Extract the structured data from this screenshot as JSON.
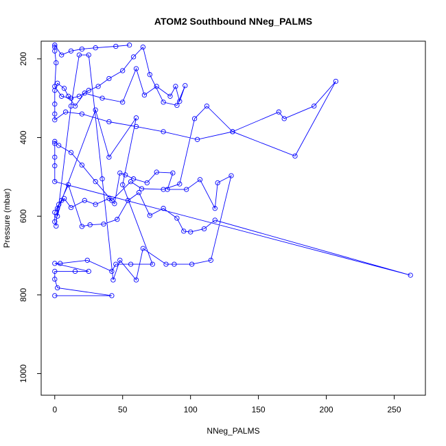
{
  "chart_data": {
    "type": "line",
    "title": "ATOM2 Southbound NNeg_PALMS",
    "xlabel": "NNeg_PALMS",
    "ylabel": "Pressure (mbar)",
    "xlim": [
      -10,
      273
    ],
    "ylim": [
      1055,
      155
    ],
    "y_reversed": true,
    "x_ticks": [
      0,
      50,
      100,
      150,
      200,
      250
    ],
    "y_ticks": [
      200,
      400,
      600,
      800,
      1000
    ],
    "grid": false,
    "series": [
      {
        "color": "#0000ff",
        "marker": "open-circle",
        "points": [
          [
            0,
            802
          ],
          [
            42,
            802
          ],
          [
            2,
            782
          ],
          [
            0,
            760
          ],
          [
            0,
            740
          ],
          [
            15,
            740
          ],
          [
            25,
            740
          ],
          [
            0,
            720
          ],
          [
            4,
            720
          ],
          [
            24,
            712
          ],
          [
            42,
            740
          ],
          [
            45,
            722
          ],
          [
            56,
            722
          ],
          [
            72,
            722
          ],
          [
            50,
            520
          ],
          [
            60,
            350
          ],
          [
            40,
            450
          ],
          [
            30,
            330
          ],
          [
            5,
            560
          ],
          [
            2,
            600
          ],
          [
            12,
            320
          ],
          [
            18,
            190
          ],
          [
            25,
            190
          ],
          [
            35,
            505
          ],
          [
            43,
            762
          ],
          [
            48,
            712
          ],
          [
            60,
            762
          ],
          [
            65,
            682
          ],
          [
            82,
            722
          ],
          [
            88,
            722
          ],
          [
            101,
            722
          ],
          [
            115,
            712
          ],
          [
            130,
            497
          ],
          [
            120,
            515
          ],
          [
            118,
            580
          ],
          [
            107,
            507
          ],
          [
            97,
            532
          ],
          [
            83,
            532
          ],
          [
            87,
            490
          ],
          [
            75,
            488
          ],
          [
            68,
            515
          ],
          [
            58,
            505
          ],
          [
            52,
            495
          ],
          [
            48,
            490
          ],
          [
            44,
            568
          ],
          [
            40,
            555
          ],
          [
            30,
            570
          ],
          [
            22,
            560
          ],
          [
            12,
            578
          ],
          [
            7,
            555
          ],
          [
            3,
            570
          ],
          [
            0,
            590
          ],
          [
            0,
            614
          ],
          [
            1,
            625
          ],
          [
            2,
            580
          ],
          [
            10,
            520
          ],
          [
            20,
            626
          ],
          [
            26,
            622
          ],
          [
            36,
            620
          ],
          [
            46,
            608
          ],
          [
            54,
            560
          ],
          [
            62,
            540
          ],
          [
            70,
            598
          ],
          [
            80,
            580
          ],
          [
            90,
            605
          ],
          [
            95,
            638
          ],
          [
            100,
            640
          ],
          [
            110,
            632
          ],
          [
            118,
            610
          ],
          [
            262,
            750
          ],
          [
            0,
            512
          ],
          [
            0,
            472
          ],
          [
            0,
            450
          ],
          [
            0,
            415
          ],
          [
            0,
            410
          ],
          [
            3,
            420
          ],
          [
            12,
            438
          ],
          [
            20,
            470
          ],
          [
            30,
            512
          ],
          [
            42,
            560
          ],
          [
            56,
            512
          ],
          [
            64,
            530
          ],
          [
            80,
            532
          ],
          [
            92,
            518
          ],
          [
            103,
            352
          ],
          [
            112,
            320
          ],
          [
            131,
            385
          ],
          [
            165,
            335
          ],
          [
            169,
            352
          ],
          [
            191,
            320
          ],
          [
            207,
            257
          ],
          [
            177,
            447
          ],
          [
            131,
            385
          ],
          [
            105,
            405
          ],
          [
            80,
            385
          ],
          [
            60,
            372
          ],
          [
            40,
            360
          ],
          [
            20,
            340
          ],
          [
            8,
            335
          ],
          [
            0,
            355
          ],
          [
            0,
            340
          ],
          [
            0,
            315
          ],
          [
            0,
            280
          ],
          [
            2,
            262
          ],
          [
            7,
            275
          ],
          [
            10,
            295
          ],
          [
            15,
            320
          ],
          [
            22,
            287
          ],
          [
            35,
            300
          ],
          [
            50,
            310
          ],
          [
            60,
            225
          ],
          [
            66,
            292
          ],
          [
            75,
            270
          ],
          [
            85,
            295
          ],
          [
            89,
            270
          ],
          [
            92,
            308
          ],
          [
            96,
            268
          ],
          [
            90,
            318
          ],
          [
            80,
            310
          ],
          [
            70,
            240
          ],
          [
            65,
            170
          ],
          [
            58,
            195
          ],
          [
            50,
            230
          ],
          [
            40,
            250
          ],
          [
            32,
            270
          ],
          [
            25,
            280
          ],
          [
            18,
            295
          ],
          [
            12,
            300
          ],
          [
            5,
            295
          ],
          [
            0,
            270
          ],
          [
            1,
            210
          ],
          [
            0,
            180
          ],
          [
            0,
            170
          ],
          [
            0,
            165
          ],
          [
            5,
            190
          ],
          [
            12,
            180
          ],
          [
            20,
            175
          ],
          [
            30,
            172
          ],
          [
            45,
            168
          ],
          [
            55,
            165
          ]
        ]
      }
    ]
  }
}
